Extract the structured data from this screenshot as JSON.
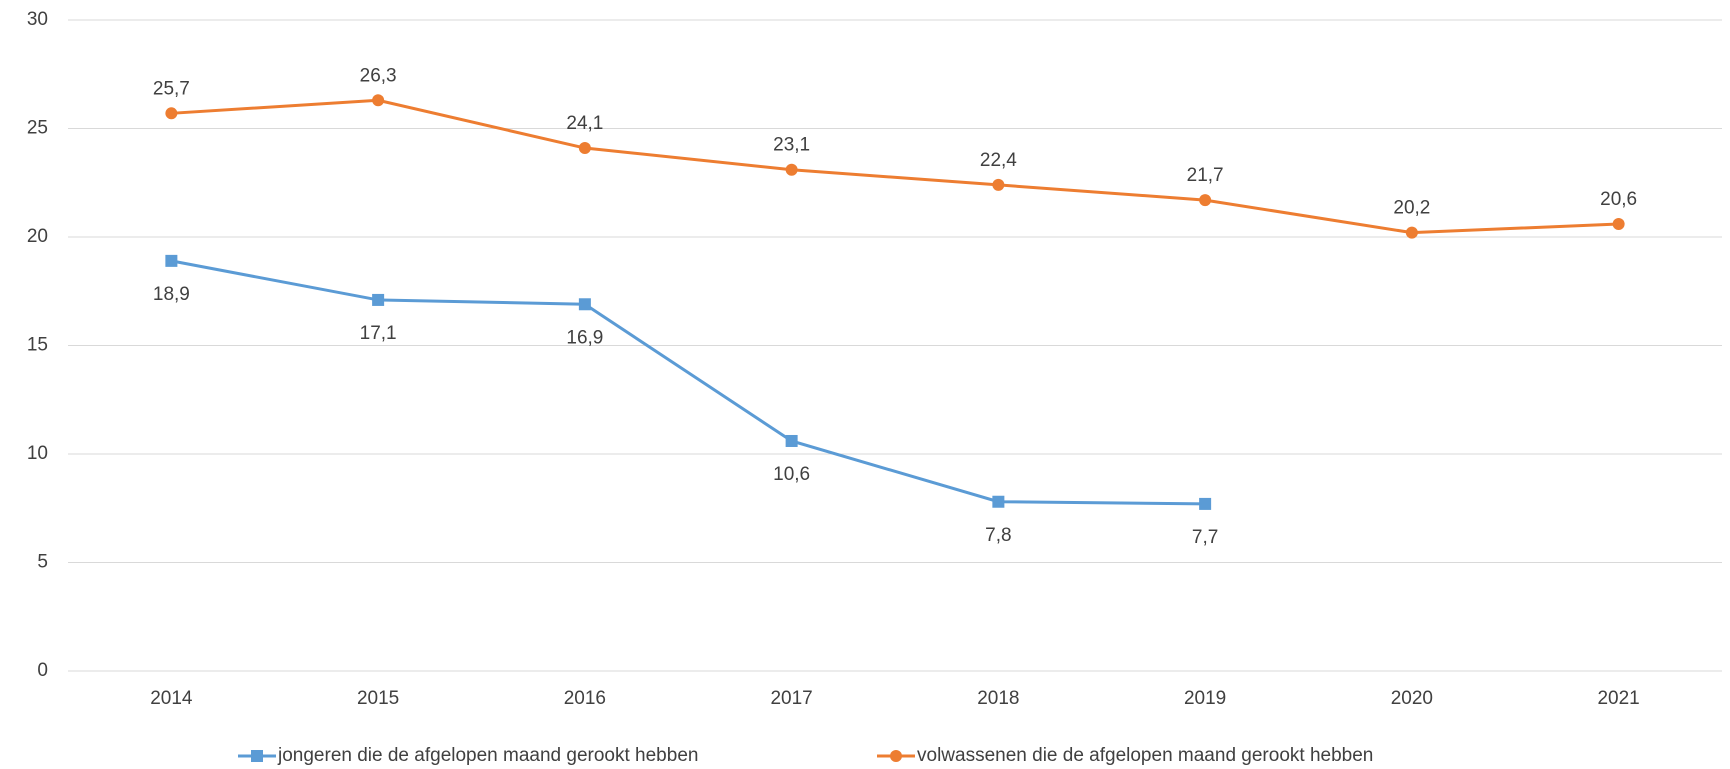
{
  "chart_data": {
    "type": "line",
    "categories": [
      "2014",
      "2015",
      "2016",
      "2017",
      "2018",
      "2019",
      "2020",
      "2021"
    ],
    "series": [
      {
        "name": "jongeren die de afgelopen maand gerookt hebben",
        "color": "#5b9bd5",
        "values": [
          18.9,
          17.1,
          16.9,
          10.6,
          7.8,
          7.7,
          null,
          null
        ],
        "value_labels": [
          "18,9",
          "17,1",
          "16,9",
          "10,6",
          "7,8",
          "7,7",
          null,
          null
        ]
      },
      {
        "name": "volwassenen die de afgelopen maand gerookt hebben",
        "color": "#ed7d31",
        "values": [
          25.7,
          26.3,
          24.1,
          23.1,
          22.4,
          21.7,
          20.2,
          20.6
        ],
        "value_labels": [
          "25,7",
          "26,3",
          "24,1",
          "23,1",
          "22,4",
          "21,7",
          "20,2",
          "20,6"
        ]
      }
    ],
    "ylim": [
      0,
      30
    ],
    "yticks": [
      0,
      5,
      10,
      15,
      20,
      25,
      30
    ],
    "grid": true,
    "legend": "bottom"
  }
}
